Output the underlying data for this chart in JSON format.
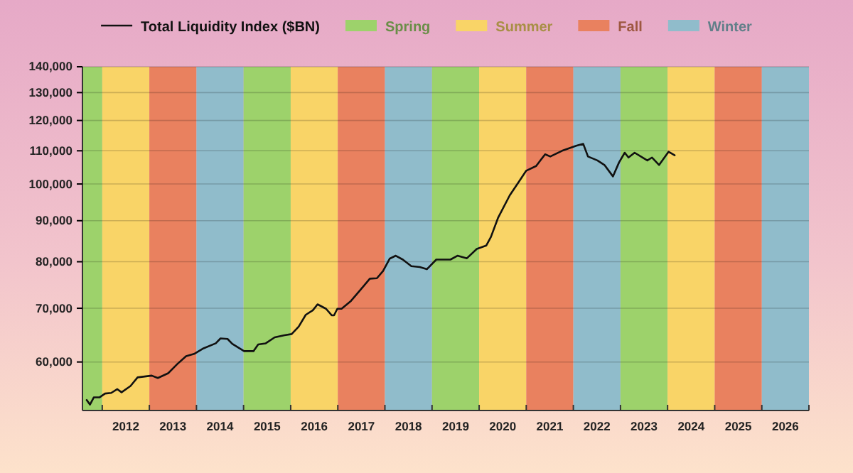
{
  "chart_data": {
    "type": "line",
    "log": "y",
    "grid": "y",
    "legend": "top",
    "marker": "none",
    "line_style": "solid",
    "xlim": [
      2011.58,
      2027
    ],
    "ylim": [
      52200,
      140000
    ],
    "xticks": [
      {
        "value": 2012,
        "label": null
      },
      {
        "value": 2012.5,
        "label": "2012"
      },
      {
        "value": 2013,
        "label": null
      },
      {
        "value": 2013.5,
        "label": "2013"
      },
      {
        "value": 2014,
        "label": null
      },
      {
        "value": 2014.5,
        "label": "2014"
      },
      {
        "value": 2015,
        "label": null
      },
      {
        "value": 2015.5,
        "label": "2015"
      },
      {
        "value": 2016,
        "label": null
      },
      {
        "value": 2016.5,
        "label": "2016"
      },
      {
        "value": 2017,
        "label": null
      },
      {
        "value": 2017.5,
        "label": "2017"
      },
      {
        "value": 2018,
        "label": null
      },
      {
        "value": 2018.5,
        "label": "2018"
      },
      {
        "value": 2019,
        "label": null
      },
      {
        "value": 2019.5,
        "label": "2019"
      },
      {
        "value": 2020,
        "label": null
      },
      {
        "value": 2020.5,
        "label": "2020"
      },
      {
        "value": 2021,
        "label": null
      },
      {
        "value": 2021.5,
        "label": "2021"
      },
      {
        "value": 2022,
        "label": null
      },
      {
        "value": 2022.5,
        "label": "2022"
      },
      {
        "value": 2023,
        "label": null
      },
      {
        "value": 2023.5,
        "label": "2023"
      },
      {
        "value": 2024,
        "label": null
      },
      {
        "value": 2024.5,
        "label": "2024"
      },
      {
        "value": 2025,
        "label": null
      },
      {
        "value": 2025.5,
        "label": "2025"
      },
      {
        "value": 2026,
        "label": null
      },
      {
        "value": 2026.5,
        "label": "2026"
      },
      {
        "value": 2027,
        "label": null
      }
    ],
    "yticks": [
      {
        "value": 60000,
        "label": "60,000"
      },
      {
        "value": 70000,
        "label": "70,000"
      },
      {
        "value": 80000,
        "label": "80,000"
      },
      {
        "value": 90000,
        "label": "90,000"
      },
      {
        "value": 100000,
        "label": "100,000"
      },
      {
        "value": 110000,
        "label": "110,000"
      },
      {
        "value": 120000,
        "label": "120,000"
      },
      {
        "value": 130000,
        "label": "130,000"
      },
      {
        "value": 140000,
        "label": "140,000"
      }
    ],
    "bands": [
      {
        "axis": "x",
        "from": 2011.58,
        "to": 2012,
        "label": "Spring",
        "color": "#9dd26b"
      },
      {
        "axis": "x",
        "from": 2012,
        "to": 2013,
        "label": "Summer",
        "color": "#f9d467"
      },
      {
        "axis": "x",
        "from": 2013,
        "to": 2014,
        "label": "Fall",
        "color": "#e9815f"
      },
      {
        "axis": "x",
        "from": 2014,
        "to": 2015,
        "label": "Winter",
        "color": "#90bccb"
      },
      {
        "axis": "x",
        "from": 2015,
        "to": 2016,
        "color": "#9dd26b"
      },
      {
        "axis": "x",
        "from": 2016,
        "to": 2017,
        "color": "#f9d467"
      },
      {
        "axis": "x",
        "from": 2017,
        "to": 2018,
        "color": "#e9815f"
      },
      {
        "axis": "x",
        "from": 2018,
        "to": 2019,
        "color": "#90bccb"
      },
      {
        "axis": "x",
        "from": 2019,
        "to": 2020,
        "color": "#9dd26b"
      },
      {
        "axis": "x",
        "from": 2020,
        "to": 2021,
        "color": "#f9d467"
      },
      {
        "axis": "x",
        "from": 2021,
        "to": 2022,
        "color": "#e9815f"
      },
      {
        "axis": "x",
        "from": 2022,
        "to": 2023,
        "color": "#90bccb"
      },
      {
        "axis": "x",
        "from": 2023,
        "to": 2024,
        "color": "#9dd26b"
      },
      {
        "axis": "x",
        "from": 2024,
        "to": 2025,
        "color": "#f9d467"
      },
      {
        "axis": "x",
        "from": 2025,
        "to": 2026,
        "color": "#e9815f"
      },
      {
        "axis": "x",
        "from": 2026,
        "to": 2027,
        "color": "#90bccb"
      }
    ],
    "series": [
      {
        "name": "Total Liquidity Index ($BN)",
        "color": "#111111",
        "x": [
          2011.67,
          2011.74,
          2011.82,
          2011.94,
          2012.06,
          2012.19,
          2012.32,
          2012.41,
          2012.6,
          2012.75,
          2013.05,
          2013.18,
          2013.4,
          2013.6,
          2013.78,
          2013.95,
          2014.15,
          2014.41,
          2014.51,
          2014.66,
          2014.76,
          2015.01,
          2015.21,
          2015.31,
          2015.47,
          2015.66,
          2015.87,
          2016.02,
          2016.17,
          2016.32,
          2016.47,
          2016.57,
          2016.75,
          2016.87,
          2016.92,
          2016.99,
          2017.08,
          2017.28,
          2017.48,
          2017.68,
          2017.83,
          2017.96,
          2018.1,
          2018.23,
          2018.38,
          2018.56,
          2018.74,
          2018.89,
          2019.09,
          2019.39,
          2019.54,
          2019.74,
          2019.95,
          2020.15,
          2020.25,
          2020.4,
          2020.65,
          2020.85,
          2021,
          2021.21,
          2021.4,
          2021.51,
          2021.76,
          2022.06,
          2022.21,
          2022.31,
          2022.51,
          2022.66,
          2022.84,
          2022.97,
          2023.09,
          2023.17,
          2023.3,
          2023.47,
          2023.57,
          2023.67,
          2023.82,
          2024.02,
          2024.15
        ],
        "values": [
          53800,
          53100,
          54200,
          54200,
          54800,
          54900,
          55500,
          55000,
          56000,
          57400,
          57700,
          57300,
          58100,
          59700,
          61000,
          61400,
          62400,
          63300,
          64200,
          64100,
          63200,
          61900,
          61900,
          63100,
          63300,
          64400,
          64800,
          65000,
          66400,
          68700,
          69600,
          70800,
          69900,
          68600,
          68600,
          69900,
          69900,
          71500,
          73800,
          76200,
          76300,
          77900,
          80700,
          81400,
          80500,
          79000,
          78800,
          78300,
          80500,
          80500,
          81400,
          80800,
          83000,
          83800,
          85900,
          90700,
          96800,
          100800,
          103900,
          105300,
          108900,
          108200,
          110000,
          111600,
          112200,
          108200,
          107000,
          105600,
          102200,
          106400,
          109400,
          107900,
          109400,
          107900,
          107000,
          107900,
          105600,
          109700,
          108600
        ]
      }
    ]
  }
}
